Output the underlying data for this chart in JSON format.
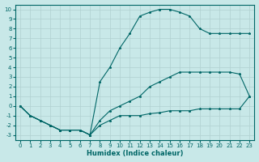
{
  "xlabel": "Humidex (Indice chaleur)",
  "ylabel": "",
  "bg_color": "#c8e8e8",
  "grid_color": "#b0d0d0",
  "line_color": "#006666",
  "xlim": [
    -0.5,
    23.5
  ],
  "ylim": [
    -3.5,
    10.5
  ],
  "xticks": [
    0,
    1,
    2,
    3,
    4,
    5,
    6,
    7,
    8,
    9,
    10,
    11,
    12,
    13,
    14,
    15,
    16,
    17,
    18,
    19,
    20,
    21,
    22,
    23
  ],
  "yticks": [
    -3,
    -2,
    -1,
    0,
    1,
    2,
    3,
    4,
    5,
    6,
    7,
    8,
    9,
    10
  ],
  "line1_x": [
    0,
    1,
    2,
    3,
    4,
    5,
    6,
    7,
    8,
    9,
    10,
    11,
    12,
    13,
    14,
    15,
    16,
    17,
    18,
    19,
    20,
    21,
    22,
    23
  ],
  "line1_y": [
    0,
    -1,
    -1.5,
    -2,
    -2.5,
    -2.5,
    -2.5,
    -3,
    -2,
    -1.5,
    -1,
    -1,
    -1,
    -0.8,
    -0.7,
    -0.5,
    -0.5,
    -0.5,
    -0.3,
    -0.3,
    -0.3,
    -0.3,
    -0.3,
    1.0
  ],
  "line2_x": [
    0,
    1,
    2,
    3,
    4,
    5,
    6,
    7,
    8,
    9,
    10,
    11,
    12,
    13,
    14,
    15,
    16,
    17,
    18,
    19,
    20,
    21,
    22,
    23
  ],
  "line2_y": [
    0,
    -1,
    -1.5,
    -2,
    -2.5,
    -2.5,
    -2.5,
    -3,
    -1.5,
    -0.5,
    0,
    0.5,
    1,
    2,
    2.5,
    3,
    3.5,
    3.5,
    3.5,
    3.5,
    3.5,
    3.5,
    3.3,
    1.0
  ],
  "line3_x": [
    0,
    1,
    2,
    3,
    4,
    5,
    6,
    7,
    8,
    9,
    10,
    11,
    12,
    13,
    14,
    15,
    16,
    17,
    18,
    19,
    20,
    21,
    22,
    23
  ],
  "line3_y": [
    0,
    -1,
    -1.5,
    -2,
    -2.5,
    -2.5,
    -2.5,
    -3,
    2.5,
    4,
    6,
    7.5,
    9.3,
    9.7,
    10,
    10,
    9.7,
    9.3,
    8,
    7.5,
    7.5,
    7.5,
    7.5,
    7.5
  ]
}
